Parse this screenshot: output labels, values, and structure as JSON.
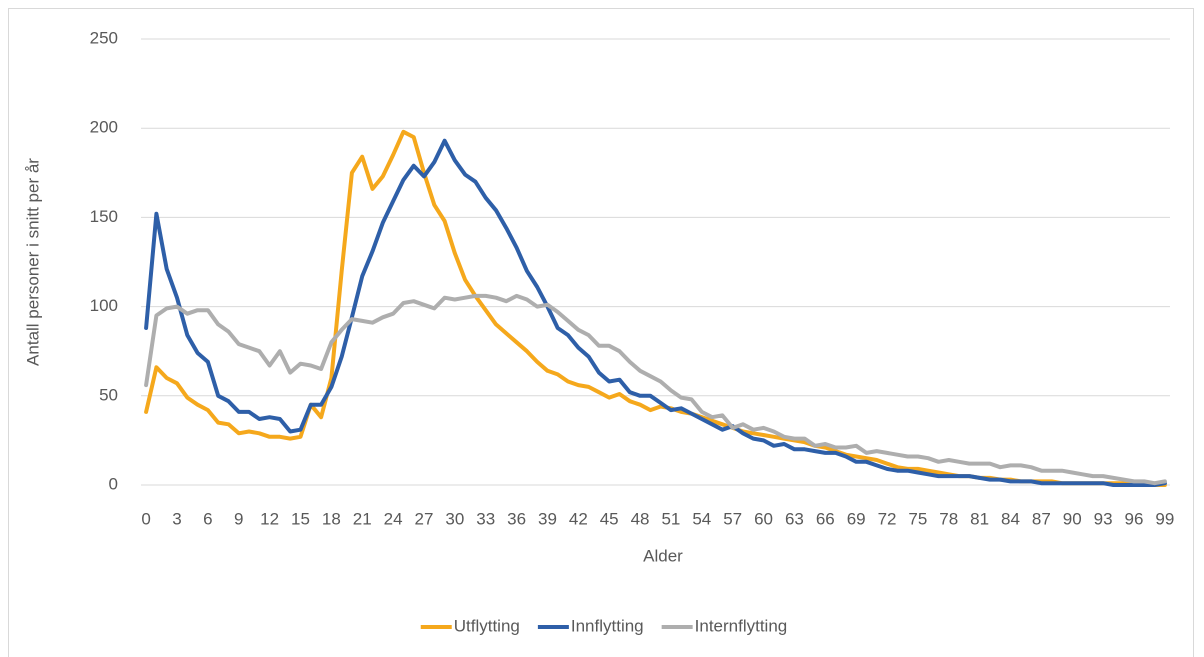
{
  "chart_data": {
    "type": "line",
    "x_label": "Alder",
    "y_label": "Antall personer i snitt per år",
    "categories": [
      "0",
      null,
      null,
      "3",
      null,
      null,
      "6",
      null,
      null,
      "9",
      null,
      null,
      "12",
      null,
      null,
      "15",
      null,
      null,
      "18",
      null,
      null,
      "21",
      null,
      null,
      "24",
      null,
      null,
      "27",
      null,
      null,
      "30",
      null,
      null,
      "33",
      null,
      null,
      "36",
      null,
      null,
      "39",
      null,
      null,
      "42",
      null,
      null,
      "45",
      null,
      null,
      "48",
      null,
      null,
      "51",
      null,
      null,
      "54",
      null,
      null,
      "57",
      null,
      null,
      "60",
      null,
      null,
      "63",
      null,
      null,
      "66",
      null,
      null,
      "69",
      null,
      null,
      "72",
      null,
      null,
      "75",
      null,
      null,
      "78",
      null,
      null,
      "81",
      null,
      null,
      "84",
      null,
      null,
      "87",
      null,
      null,
      "90",
      null,
      null,
      "93",
      null,
      null,
      "96",
      null,
      null,
      "99"
    ],
    "ylim": [
      0,
      250
    ],
    "yticks": [
      0,
      50,
      100,
      150,
      200,
      250
    ],
    "grid": true,
    "legend": "bottom",
    "series": [
      {
        "name": "Utflytting",
        "color": "#f5a81c",
        "values": [
          41,
          66,
          60,
          57,
          49,
          45,
          42,
          35,
          34,
          29,
          30,
          29,
          27,
          27,
          26,
          27,
          45,
          38,
          60,
          120,
          175,
          184,
          166,
          173,
          185,
          198,
          195,
          175,
          157,
          148,
          130,
          115,
          106,
          98,
          90,
          85,
          80,
          75,
          69,
          64,
          62,
          58,
          56,
          55,
          52,
          49,
          51,
          47,
          45,
          42,
          44,
          43,
          41,
          40,
          38,
          36,
          34,
          32,
          30,
          29,
          28,
          27,
          26,
          25,
          24,
          22,
          21,
          19,
          17,
          16,
          15,
          14,
          12,
          10,
          9,
          9,
          8,
          7,
          6,
          5,
          5,
          4,
          4,
          3,
          3,
          2,
          2,
          2,
          2,
          1,
          1,
          1,
          1,
          1,
          1,
          1,
          1,
          0,
          0,
          0
        ]
      },
      {
        "name": "Innflytting",
        "color": "#2e5fa8",
        "values": [
          88,
          152,
          121,
          105,
          84,
          74,
          69,
          50,
          47,
          41,
          41,
          37,
          38,
          37,
          30,
          31,
          45,
          45,
          55,
          72,
          94,
          117,
          131,
          147,
          159,
          171,
          179,
          173,
          181,
          193,
          182,
          174,
          170,
          161,
          154,
          144,
          133,
          120,
          111,
          100,
          88,
          84,
          77,
          72,
          63,
          58,
          59,
          52,
          50,
          50,
          46,
          42,
          43,
          40,
          37,
          34,
          31,
          33,
          29,
          26,
          25,
          22,
          23,
          20,
          20,
          19,
          18,
          18,
          16,
          13,
          13,
          11,
          9,
          8,
          8,
          7,
          6,
          5,
          5,
          5,
          5,
          4,
          3,
          3,
          2,
          2,
          2,
          1,
          1,
          1,
          1,
          1,
          1,
          1,
          0,
          0,
          0,
          0,
          0,
          1
        ]
      },
      {
        "name": "Internflytting",
        "color": "#aeaeae",
        "values": [
          56,
          95,
          99,
          100,
          96,
          98,
          98,
          90,
          86,
          79,
          77,
          75,
          67,
          75,
          63,
          68,
          67,
          65,
          80,
          87,
          93,
          92,
          91,
          94,
          96,
          102,
          103,
          101,
          99,
          105,
          104,
          105,
          106,
          106,
          105,
          103,
          106,
          104,
          100,
          101,
          97,
          92,
          87,
          84,
          78,
          78,
          75,
          69,
          64,
          61,
          58,
          53,
          49,
          48,
          41,
          38,
          39,
          32,
          34,
          31,
          32,
          30,
          27,
          26,
          26,
          22,
          23,
          21,
          21,
          22,
          18,
          19,
          18,
          17,
          16,
          16,
          15,
          13,
          14,
          13,
          12,
          12,
          12,
          10,
          11,
          11,
          10,
          8,
          8,
          8,
          7,
          6,
          5,
          5,
          4,
          3,
          2,
          2,
          1,
          2
        ]
      }
    ]
  }
}
